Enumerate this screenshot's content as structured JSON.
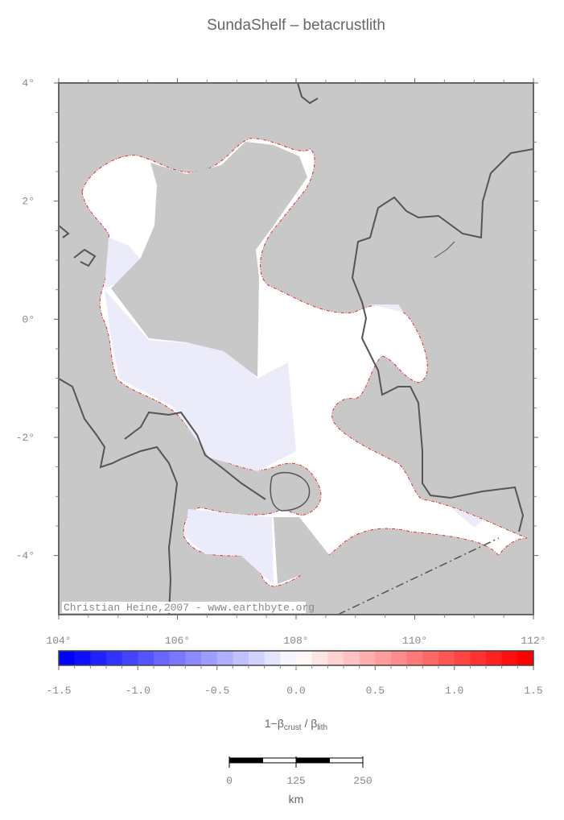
{
  "title": "SundaShelf – betacrustlith",
  "map": {
    "xlim": [
      104,
      112
    ],
    "ylim": [
      -5,
      4
    ],
    "xticks": [
      {
        "value": 104,
        "label": "104°"
      },
      {
        "value": 106,
        "label": "106°"
      },
      {
        "value": 108,
        "label": "108°"
      },
      {
        "value": 110,
        "label": "110°"
      },
      {
        "value": 112,
        "label": "112°"
      }
    ],
    "yticks": [
      {
        "value": 4,
        "label": "4°"
      },
      {
        "value": 2,
        "label": "2°"
      },
      {
        "value": 0,
        "label": "0°"
      },
      {
        "value": -2,
        "label": "-2°"
      },
      {
        "value": -4,
        "label": "-4°"
      }
    ],
    "credit": "Christian Heine,2007 - www.earthbyte.org"
  },
  "colorbar": {
    "lim": [
      -1.5,
      1.5
    ],
    "ticks": [
      -1.5,
      {
        "value": -1,
        "label": "-1.0"
      },
      -0.5,
      {
        "value": 0,
        "label": "0.0"
      },
      0.5,
      {
        "value": 1,
        "label": "1.0"
      },
      1.5
    ],
    "label": {
      "prefix": "1−β",
      "sub1": "crust",
      "mid": " / β",
      "sub2": "lith"
    }
  },
  "scalebar": {
    "ticks": [
      0,
      125,
      250
    ],
    "unit": "km"
  }
}
